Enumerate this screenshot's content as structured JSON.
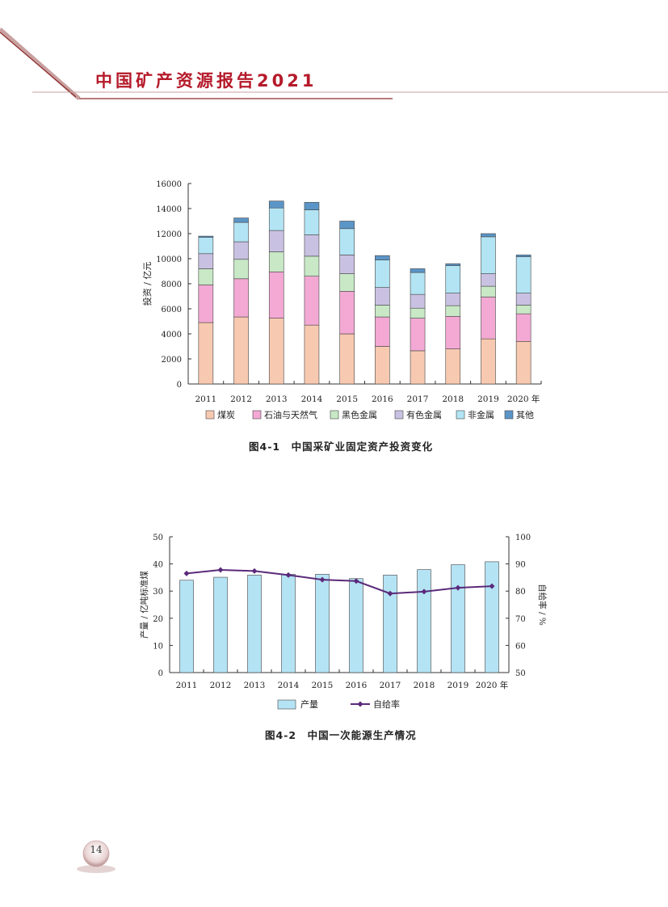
{
  "header": {
    "title": "中国矿产资源报告2021"
  },
  "page_number": "14",
  "colors": {
    "brand_red": "#b51a2a",
    "coal": "#f7c9b0",
    "oil_gas": "#f3a9d4",
    "ferrous": "#c8e8c6",
    "nonferrous": "#c9c1e2",
    "nonmetal": "#b2e4f4",
    "other": "#5b95c7",
    "production": "#b4e3f4",
    "self_sufficiency": "#5a2a7a"
  },
  "figure1": {
    "caption": "图4-1　中国采矿业固定资产投资变化"
  },
  "figure2": {
    "caption": "图4-2　中国一次能源生产情况"
  },
  "chart_data": [
    {
      "type": "bar",
      "stacked": true,
      "categories": [
        "2011",
        "2012",
        "2013",
        "2014",
        "2015",
        "2016",
        "2017",
        "2018",
        "2019",
        "2020 年"
      ],
      "ylabel": "投资 / 亿元",
      "ylim": [
        0,
        16000
      ],
      "yticks": [
        "0",
        "2000",
        "4000",
        "6000",
        "8000",
        "10000",
        "12000",
        "14000",
        "16000"
      ],
      "legend_position": "bottom",
      "series": [
        {
          "name": "煤炭",
          "color": "#f7c9b0",
          "values": [
            4900,
            5350,
            5250,
            4700,
            4000,
            3000,
            2650,
            2800,
            3600,
            3400
          ]
        },
        {
          "name": "石油与天然气",
          "color": "#f3a9d4",
          "values": [
            3000,
            3050,
            3700,
            3900,
            3400,
            2350,
            2600,
            2600,
            3350,
            2200
          ]
        },
        {
          "name": "黑色金属",
          "color": "#c8e8c6",
          "values": [
            1300,
            1550,
            1600,
            1600,
            1400,
            950,
            800,
            850,
            850,
            700
          ]
        },
        {
          "name": "有色金属",
          "color": "#c9c1e2",
          "values": [
            1200,
            1400,
            1700,
            1700,
            1500,
            1400,
            1100,
            1000,
            1000,
            950
          ]
        },
        {
          "name": "非金属",
          "color": "#b2e4f4",
          "values": [
            1300,
            1550,
            1800,
            2000,
            2100,
            2200,
            1750,
            2200,
            2950,
            2900
          ]
        },
        {
          "name": "其他",
          "color": "#5b95c7",
          "values": [
            100,
            350,
            550,
            600,
            600,
            350,
            300,
            150,
            250,
            150
          ]
        }
      ]
    },
    {
      "type": "bar+line",
      "categories": [
        "2011",
        "2012",
        "2013",
        "2014",
        "2015",
        "2016",
        "2017",
        "2018",
        "2019",
        "2020 年"
      ],
      "ylabel_left": "产量 / 亿吨标准煤",
      "ylim_left": [
        0,
        50
      ],
      "yticks_left": [
        "0",
        "10",
        "20",
        "30",
        "40",
        "50"
      ],
      "ylabel_right": "自给率 / %",
      "ylim_right": [
        50,
        100
      ],
      "yticks_right": [
        "50",
        "60",
        "70",
        "80",
        "90",
        "100"
      ],
      "legend_position": "bottom",
      "series": [
        {
          "name": "产量",
          "kind": "bar",
          "axis": "left",
          "color": "#b4e3f4",
          "values": [
            34.0,
            35.1,
            35.9,
            36.2,
            36.2,
            34.6,
            35.9,
            37.9,
            39.7,
            40.8
          ]
        },
        {
          "name": "自给率",
          "kind": "line",
          "axis": "right",
          "color": "#5a2a7a",
          "values": [
            86.5,
            87.8,
            87.4,
            85.9,
            84.2,
            83.7,
            79.1,
            79.8,
            81.2,
            81.8
          ]
        }
      ]
    }
  ]
}
